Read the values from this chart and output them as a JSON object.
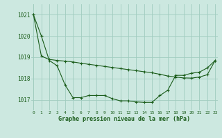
{
  "bg_color": "#cce8e0",
  "line_color": "#1a5c1a",
  "grid_color": "#a0ccbf",
  "ylabel_values": [
    1017,
    1018,
    1019,
    1020,
    1021
  ],
  "xlabel_values": [
    0,
    1,
    2,
    3,
    4,
    5,
    6,
    7,
    8,
    9,
    10,
    11,
    12,
    13,
    14,
    15,
    16,
    17,
    18,
    19,
    20,
    21,
    22,
    23
  ],
  "series1_x": [
    0,
    1,
    2,
    3,
    4,
    5,
    6,
    7,
    8,
    9,
    10,
    11,
    12,
    13,
    14,
    15,
    16,
    17,
    18,
    19,
    20,
    21,
    22,
    23
  ],
  "series1_y": [
    1021.0,
    1020.0,
    1018.85,
    1018.6,
    1017.7,
    1017.1,
    1017.1,
    1017.2,
    1017.2,
    1017.2,
    1017.05,
    1016.95,
    1016.95,
    1016.9,
    1016.88,
    1016.88,
    1017.2,
    1017.45,
    1018.15,
    1018.15,
    1018.25,
    1018.3,
    1018.5,
    1018.85
  ],
  "series2_x": [
    0,
    1,
    2,
    3,
    4,
    5,
    6,
    7,
    8,
    9,
    10,
    11,
    12,
    13,
    14,
    15,
    16,
    17,
    18,
    19,
    20,
    21,
    22,
    23
  ],
  "series2_y": [
    1021.0,
    1019.05,
    1018.9,
    1018.85,
    1018.82,
    1018.78,
    1018.72,
    1018.67,
    1018.62,
    1018.57,
    1018.52,
    1018.47,
    1018.42,
    1018.37,
    1018.32,
    1018.27,
    1018.2,
    1018.12,
    1018.07,
    1018.03,
    1018.02,
    1018.07,
    1018.18,
    1018.85
  ],
  "xlabel": "Graphe pression niveau de la mer (hPa)",
  "ylim": [
    1016.5,
    1021.5
  ],
  "xlim": [
    -0.3,
    23.3
  ]
}
